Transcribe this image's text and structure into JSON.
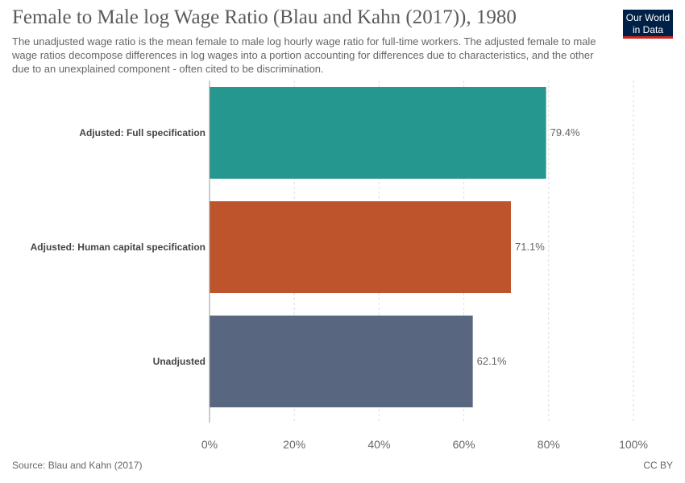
{
  "header": {
    "title": "Female to Male log Wage Ratio (Blau and Kahn (2017)), 1980",
    "subtitle": "The unadjusted wage ratio is the mean female to male log hourly wage ratio for full-time workers. The adjusted female to male wage ratios decompose differences in log wages into a portion accounting for differences due to characteristics, and the other due to an unexplained component - often cited to be discrimination.",
    "logo_line1": "Our World",
    "logo_line2": "in Data"
  },
  "footer": {
    "source": "Source: Blau and Kahn (2017)",
    "license": "CC BY"
  },
  "chart_data": {
    "type": "bar",
    "orientation": "horizontal",
    "categories": [
      "Adjusted: Full specification",
      "Adjusted: Human capital specification",
      "Unadjusted"
    ],
    "values": [
      79.4,
      71.1,
      62.1
    ],
    "value_labels": [
      "79.4%",
      "71.1%",
      "62.1%"
    ],
    "colors": [
      "#26978f",
      "#be542b",
      "#58677f"
    ],
    "xlim": [
      0,
      100
    ],
    "xticks": [
      0,
      20,
      40,
      60,
      80,
      100
    ],
    "xtick_labels": [
      "0%",
      "20%",
      "40%",
      "60%",
      "80%",
      "100%"
    ],
    "grid": true
  }
}
